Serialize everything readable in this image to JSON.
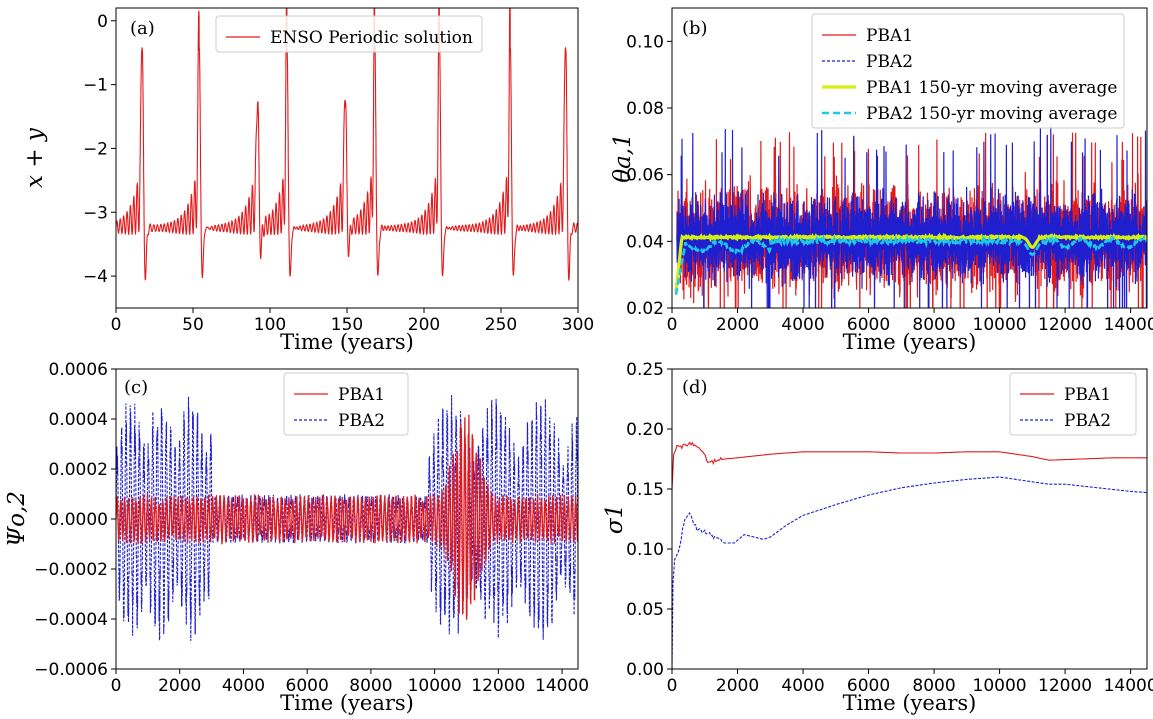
{
  "colors": {
    "pba1": "#e31a1c",
    "pba2": "#1f1fd0",
    "pba1_avg": "#d4f012",
    "pba2_avg": "#1ec8e8"
  },
  "chart_data": [
    {
      "panel": "(a)",
      "type": "line",
      "xlabel": "Time (years)",
      "ylabel": "x + y",
      "xlim": [
        0,
        300
      ],
      "ylim": [
        -4.5,
        0.2
      ],
      "xticks": [
        "0",
        "50",
        "100",
        "150",
        "200",
        "250",
        "300"
      ],
      "yticks": [
        "−4",
        "−3",
        "−2",
        "−1",
        "0"
      ],
      "legend": "top-center",
      "series": [
        {
          "name": "ENSO Periodic solution",
          "color": "#e31a1c",
          "style": "solid",
          "description": "periodic relaxation oscillation",
          "peaks": [
            {
              "t": 17,
              "max": -0.45,
              "min": -4.0
            },
            {
              "t": 54,
              "max": -0.45,
              "min": -4.0
            },
            {
              "t": 92,
              "max": -1.3,
              "min": -3.6
            },
            {
              "t": 111,
              "max": -0.5,
              "min": -4.0
            },
            {
              "t": 149,
              "max": -1.3,
              "min": -3.6
            },
            {
              "t": 168,
              "max": -0.45,
              "min": -4.0
            },
            {
              "t": 210,
              "max": -0.45,
              "min": -4.0
            },
            {
              "t": 256,
              "max": -0.5,
              "min": -4.0
            },
            {
              "t": 292,
              "max": -0.45,
              "min": -4.0
            }
          ],
          "baseline": -3.25
        }
      ]
    },
    {
      "panel": "(b)",
      "type": "line",
      "xlabel": "Time (years)",
      "ylabel": "θa,1",
      "xlim": [
        0,
        14500
      ],
      "ylim": [
        0.02,
        0.11
      ],
      "xticks": [
        "0",
        "2000",
        "4000",
        "6000",
        "8000",
        "10000",
        "12000",
        "14000"
      ],
      "yticks": [
        "0.02",
        "0.04",
        "0.06",
        "0.08",
        "0.10"
      ],
      "legend": "top-right",
      "series": [
        {
          "name": "PBA1",
          "color": "#e31a1c",
          "style": "solid",
          "mean": 0.041,
          "low": 0.022,
          "high": 0.073
        },
        {
          "name": "PBA2",
          "color": "#1f1fd0",
          "style": "dashed",
          "mean": 0.041,
          "low": 0.021,
          "high": 0.075
        },
        {
          "name": "PBA1 150-yr moving average",
          "color": "#d4f012",
          "style": "solid",
          "mean": 0.0412
        },
        {
          "name": "PBA2 150-yr moving average",
          "color": "#1ec8e8",
          "style": "dashed",
          "mean": 0.04,
          "dip": {
            "t": 11000,
            "value": 0.036
          }
        }
      ]
    },
    {
      "panel": "(c)",
      "type": "line",
      "xlabel": "Time (years)",
      "ylabel": "Ψo,2",
      "xlim": [
        0,
        14500
      ],
      "ylim": [
        -0.0006,
        0.0006
      ],
      "xticks": [
        "0",
        "2000",
        "4000",
        "6000",
        "8000",
        "10000",
        "12000",
        "14000"
      ],
      "yticks": [
        "−0.0006",
        "−0.0004",
        "−0.0002",
        "0.0000",
        "0.0002",
        "0.0004",
        "0.0006"
      ],
      "legend": "top-center",
      "series": [
        {
          "name": "PBA1",
          "color": "#e31a1c",
          "style": "solid",
          "quiet_amp": 0.0001,
          "burst": {
            "start": 9800,
            "end": 11800,
            "amp": 0.00045
          }
        },
        {
          "name": "PBA2",
          "color": "#1f1fd0",
          "style": "dashed",
          "early_amp": 0.0005,
          "quiet_amp": 0.0001,
          "late_amp": 0.0005
        }
      ]
    },
    {
      "panel": "(d)",
      "type": "line",
      "xlabel": "Time (years)",
      "ylabel": "σ1",
      "xlim": [
        0,
        14500
      ],
      "ylim": [
        0.0,
        0.25
      ],
      "xticks": [
        "0",
        "2000",
        "4000",
        "6000",
        "8000",
        "10000",
        "12000",
        "14000"
      ],
      "yticks": [
        "0.00",
        "0.05",
        "0.10",
        "0.15",
        "0.20",
        "0.25"
      ],
      "legend": "top-right",
      "series": [
        {
          "name": "PBA1",
          "color": "#e31a1c",
          "style": "solid",
          "x": [
            0,
            50,
            150,
            300,
            500,
            700,
            900,
            1100,
            1300,
            1600,
            2000,
            3000,
            4000,
            5000,
            6000,
            7000,
            8000,
            9000,
            10000,
            10500,
            11000,
            11500,
            12500,
            13500,
            14500
          ],
          "y": [
            0.15,
            0.18,
            0.186,
            0.185,
            0.188,
            0.186,
            0.181,
            0.173,
            0.173,
            0.175,
            0.176,
            0.179,
            0.181,
            0.181,
            0.181,
            0.18,
            0.18,
            0.181,
            0.181,
            0.179,
            0.177,
            0.174,
            0.175,
            0.176,
            0.176
          ]
        },
        {
          "name": "PBA2",
          "color": "#1f1fd0",
          "style": "dashed",
          "x": [
            0,
            30,
            80,
            150,
            250,
            400,
            500,
            600,
            800,
            1000,
            1300,
            1600,
            1900,
            2200,
            2500,
            2800,
            3000,
            3500,
            4000,
            5000,
            6000,
            7000,
            8000,
            9000,
            10000,
            10500,
            11000,
            11500,
            12000,
            13000,
            14000,
            14500
          ],
          "y": [
            0.0,
            0.07,
            0.09,
            0.095,
            0.105,
            0.125,
            0.13,
            0.125,
            0.115,
            0.115,
            0.11,
            0.105,
            0.105,
            0.112,
            0.11,
            0.108,
            0.11,
            0.12,
            0.128,
            0.137,
            0.145,
            0.151,
            0.155,
            0.158,
            0.16,
            0.158,
            0.156,
            0.154,
            0.154,
            0.151,
            0.148,
            0.147
          ]
        }
      ]
    }
  ]
}
